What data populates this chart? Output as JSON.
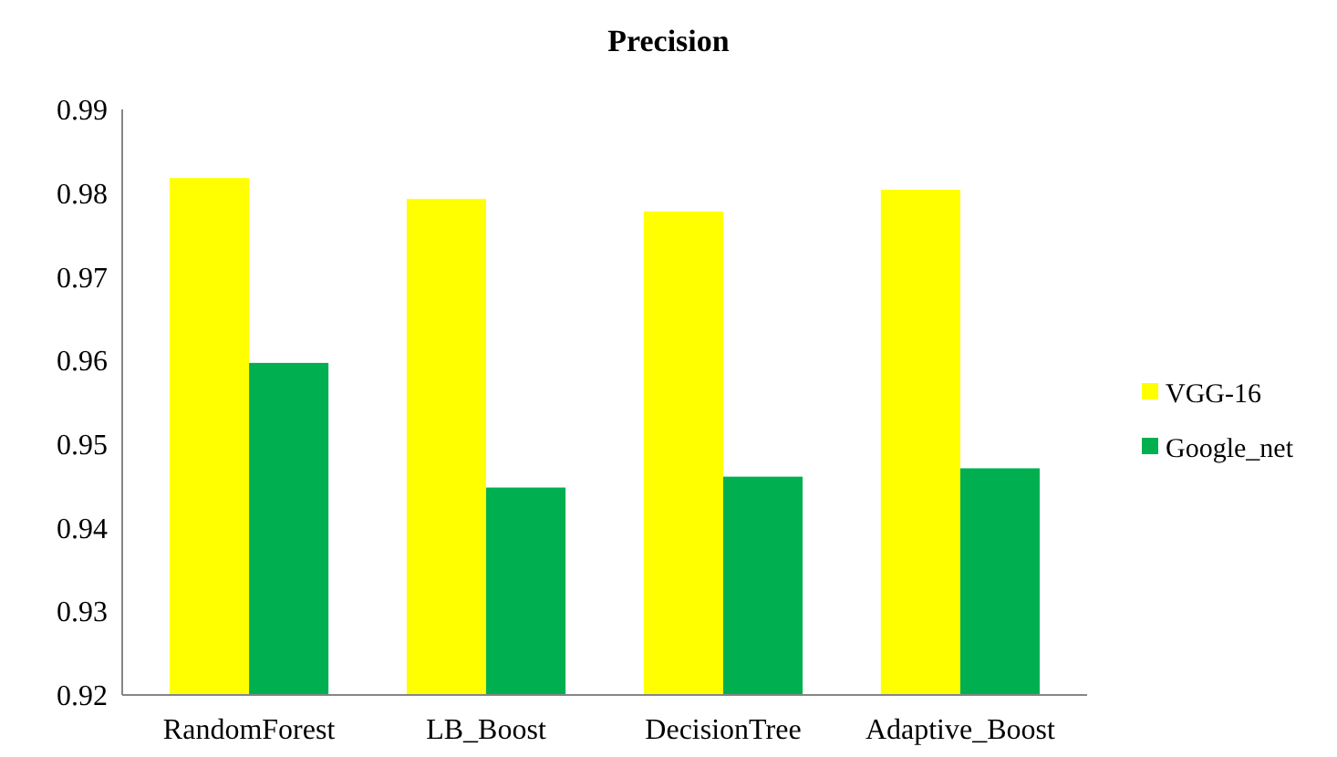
{
  "chart_data": {
    "type": "bar",
    "title": "Precision",
    "categories": [
      "RandomForest",
      "LB_Boost",
      "DecisionTree",
      "Adaptive_Boost"
    ],
    "series": [
      {
        "name": "VGG-16",
        "color": "#ffff00",
        "values": [
          0.9818,
          0.9793,
          0.9778,
          0.9804
        ]
      },
      {
        "name": "Google_net",
        "color": "#00b050",
        "values": [
          0.9597,
          0.9448,
          0.9461,
          0.9471
        ]
      }
    ],
    "ylim": [
      0.92,
      0.99
    ],
    "yticks": [
      0.92,
      0.93,
      0.94,
      0.95,
      0.96,
      0.97,
      0.98,
      0.99
    ],
    "grid": false,
    "legend": "right"
  }
}
